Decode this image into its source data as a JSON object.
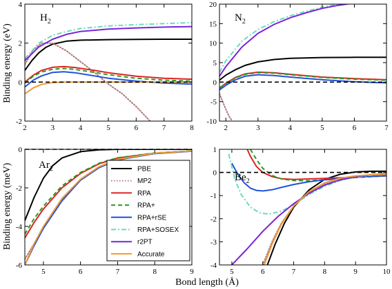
{
  "figure": {
    "ylabel_top": "Binding energy (eV)",
    "ylabel_bottom": "Binding energy (meV)",
    "xlabel": "Bond length (Å)"
  },
  "legend": [
    {
      "name": "PBE",
      "color": "#000000",
      "dash": "solid"
    },
    {
      "name": "MP2",
      "color": "#b07a7a",
      "dash": "dotted"
    },
    {
      "name": "RPA",
      "color": "#dd2222",
      "dash": "solid"
    },
    {
      "name": "RPA+",
      "color": "#2a9a1a",
      "dash": "dashed"
    },
    {
      "name": "RPA+rSE",
      "color": "#2050dd",
      "dash": "solid"
    },
    {
      "name": "RPA+SOSEX",
      "color": "#66ddbb",
      "dash": "dashdot"
    },
    {
      "name": "r2PT",
      "color": "#7a22dd",
      "dash": "solid"
    },
    {
      "name": "Accurate",
      "color": "#ee9933",
      "dash": "solid"
    }
  ],
  "chart_data": [
    {
      "type": "line",
      "panel_label": "H",
      "panel_sub": "2",
      "xlim": [
        2,
        8
      ],
      "ylim": [
        -2,
        4
      ],
      "xticks": [
        2,
        3,
        4,
        5,
        6,
        7,
        8
      ],
      "yticks": [
        -2,
        0,
        2,
        4
      ],
      "reference_line": 0,
      "series": [
        {
          "name": "PBE",
          "x": [
            2.0,
            2.25,
            2.5,
            2.75,
            3.0,
            3.5,
            4.0,
            5.0,
            6.0,
            7.0,
            8.0
          ],
          "y": [
            0.6,
            1.1,
            1.5,
            1.78,
            1.95,
            2.1,
            2.15,
            2.18,
            2.19,
            2.2,
            2.2
          ]
        },
        {
          "name": "MP2",
          "x": [
            2.0,
            2.3,
            2.6,
            3.0,
            3.5,
            4.0,
            4.5,
            5.0,
            5.5,
            6.0,
            6.5
          ],
          "y": [
            0.9,
            1.65,
            2.0,
            2.0,
            1.6,
            1.05,
            0.5,
            -0.1,
            -0.6,
            -1.25,
            -2.0
          ]
        },
        {
          "name": "RPA",
          "x": [
            2.0,
            2.3,
            2.6,
            3.0,
            3.4,
            3.8,
            4.5,
            5.0,
            6.0,
            7.0,
            8.0
          ],
          "y": [
            0.0,
            0.35,
            0.6,
            0.76,
            0.8,
            0.75,
            0.6,
            0.48,
            0.3,
            0.2,
            0.15
          ]
        },
        {
          "name": "RPA+",
          "x": [
            2.0,
            2.3,
            2.6,
            3.0,
            3.4,
            3.8,
            4.5,
            5.0,
            6.0,
            7.0,
            8.0
          ],
          "y": [
            -0.05,
            0.3,
            0.52,
            0.66,
            0.7,
            0.65,
            0.5,
            0.38,
            0.2,
            0.1,
            0.05
          ]
        },
        {
          "name": "RPA+rSE",
          "x": [
            2.0,
            2.3,
            2.6,
            3.0,
            3.4,
            3.8,
            4.5,
            5.0,
            6.0,
            7.0,
            8.0
          ],
          "y": [
            -0.25,
            0.1,
            0.32,
            0.5,
            0.53,
            0.48,
            0.32,
            0.2,
            0.05,
            -0.05,
            -0.1
          ]
        },
        {
          "name": "RPA+SOSEX",
          "x": [
            2.0,
            2.5,
            3.0,
            3.5,
            4.0,
            5.0,
            6.0,
            7.0,
            8.0
          ],
          "y": [
            1.2,
            2.0,
            2.4,
            2.6,
            2.75,
            2.88,
            2.95,
            3.0,
            3.05
          ]
        },
        {
          "name": "r2PT",
          "x": [
            2.0,
            2.5,
            3.0,
            3.5,
            4.0,
            5.0,
            6.0,
            7.0,
            8.0
          ],
          "y": [
            1.1,
            1.8,
            2.2,
            2.45,
            2.6,
            2.72,
            2.78,
            2.82,
            2.85
          ]
        },
        {
          "name": "Accurate",
          "x": [
            2.0,
            2.3,
            2.6,
            3.0,
            3.5,
            4.0,
            5.0,
            6.0,
            7.0,
            8.0
          ],
          "y": [
            -0.6,
            -0.3,
            -0.12,
            -0.02,
            0.0,
            0.0,
            0.0,
            0.0,
            0.0,
            0.0
          ]
        }
      ]
    },
    {
      "type": "line",
      "panel_label": "N",
      "panel_sub": "2",
      "xlim": [
        1.8,
        7
      ],
      "ylim": [
        -10,
        20
      ],
      "xticks": [
        2,
        3,
        4,
        5,
        6,
        7
      ],
      "yticks": [
        -10,
        -5,
        0,
        5,
        10,
        15,
        20
      ],
      "reference_line": 0,
      "series": [
        {
          "name": "PBE",
          "x": [
            1.8,
            2.0,
            2.3,
            2.6,
            3.0,
            3.5,
            4.0,
            5.0,
            6.0,
            7.0
          ],
          "y": [
            0.5,
            1.8,
            3.2,
            4.3,
            5.2,
            5.8,
            6.1,
            6.3,
            6.35,
            6.35
          ]
        },
        {
          "name": "MP2",
          "x": [
            1.8,
            1.9,
            2.0,
            2.1,
            2.2
          ],
          "y": [
            -3.0,
            -5.0,
            -7.0,
            -8.8,
            -10.0
          ]
        },
        {
          "name": "RPA",
          "x": [
            1.8,
            2.0,
            2.3,
            2.6,
            3.0,
            3.5,
            4.0,
            5.0,
            6.0,
            7.0
          ],
          "y": [
            -1.5,
            -0.3,
            1.2,
            2.1,
            2.55,
            2.4,
            2.0,
            1.3,
            0.9,
            0.6
          ]
        },
        {
          "name": "RPA+",
          "x": [
            1.8,
            2.0,
            2.3,
            2.6,
            3.0,
            3.5,
            4.0,
            5.0,
            6.0,
            7.0
          ],
          "y": [
            -1.6,
            -0.4,
            1.1,
            2.0,
            2.45,
            2.3,
            1.9,
            1.2,
            0.75,
            0.5
          ]
        },
        {
          "name": "RPA+rSE",
          "x": [
            1.8,
            2.0,
            2.3,
            2.6,
            3.0,
            3.5,
            4.0,
            5.0,
            6.0,
            7.0
          ],
          "y": [
            -2.0,
            -0.8,
            0.6,
            1.5,
            1.9,
            1.7,
            1.3,
            0.6,
            0.1,
            -0.2
          ]
        },
        {
          "name": "RPA+SOSEX",
          "x": [
            1.8,
            2.0,
            2.5,
            3.0,
            3.5,
            4.0,
            4.5,
            5.0,
            5.5,
            6.0
          ],
          "y": [
            2.5,
            5.5,
            10.5,
            13.5,
            15.5,
            17.0,
            18.2,
            19.2,
            20.0,
            20.5
          ]
        },
        {
          "name": "r2PT",
          "x": [
            1.8,
            2.0,
            2.5,
            3.0,
            3.5,
            4.0,
            4.5,
            5.0,
            5.5,
            6.0
          ],
          "y": [
            1.5,
            4.0,
            9.0,
            12.5,
            14.8,
            16.5,
            17.8,
            18.9,
            19.7,
            20.3
          ]
        }
      ]
    },
    {
      "type": "line",
      "panel_label": "Ar",
      "panel_sub": "2",
      "xlim": [
        4.5,
        9
      ],
      "ylim": [
        -6,
        0
      ],
      "xticks": [
        5,
        6,
        7,
        8,
        9
      ],
      "yticks": [
        -6,
        -4,
        -2,
        0
      ],
      "reference_line": 0,
      "series": [
        {
          "name": "PBE",
          "x": [
            4.5,
            4.75,
            5.0,
            5.25,
            5.5,
            6.0,
            6.5,
            7.0,
            8.0,
            9.0
          ],
          "y": [
            -3.7,
            -2.5,
            -1.5,
            -0.85,
            -0.45,
            -0.12,
            -0.03,
            0.0,
            0.0,
            0.0
          ]
        },
        {
          "name": "MP2",
          "x": [
            4.5,
            4.75,
            5.0,
            5.5,
            6.0,
            6.5,
            7.0,
            8.0,
            9.0
          ],
          "y": [
            -5.7,
            -4.9,
            -4.1,
            -2.7,
            -1.6,
            -0.95,
            -0.55,
            -0.22,
            -0.1
          ]
        },
        {
          "name": "RPA",
          "x": [
            4.5,
            4.75,
            5.0,
            5.5,
            6.0,
            6.5,
            7.0,
            8.0,
            9.0
          ],
          "y": [
            -4.6,
            -3.8,
            -3.1,
            -2.0,
            -1.25,
            -0.75,
            -0.45,
            -0.2,
            -0.09
          ]
        },
        {
          "name": "RPA+",
          "x": [
            4.5,
            4.75,
            5.0,
            5.5,
            6.0,
            6.5,
            7.0,
            8.0,
            9.0
          ],
          "y": [
            -4.4,
            -3.6,
            -2.95,
            -1.9,
            -1.2,
            -0.72,
            -0.44,
            -0.19,
            -0.08
          ]
        },
        {
          "name": "RPA+rSE",
          "x": [
            4.5,
            4.75,
            5.0,
            5.5,
            6.0,
            6.5,
            7.0,
            8.0,
            9.0
          ],
          "y": [
            -6.0,
            -5.0,
            -4.1,
            -2.65,
            -1.6,
            -0.95,
            -0.55,
            -0.22,
            -0.1
          ]
        },
        {
          "name": "Accurate",
          "x": [
            4.5,
            4.75,
            5.0,
            5.5,
            6.0,
            6.5,
            7.0,
            8.0,
            9.0
          ],
          "y": [
            -6.0,
            -4.9,
            -4.0,
            -2.55,
            -1.55,
            -0.9,
            -0.52,
            -0.2,
            -0.09
          ]
        }
      ]
    },
    {
      "type": "line",
      "panel_label": "Be",
      "panel_sub": "2",
      "xlim": [
        4.6,
        10
      ],
      "ylim": [
        -4,
        1
      ],
      "xticks": [
        5,
        6,
        7,
        8,
        9,
        10
      ],
      "yticks": [
        -4,
        -3,
        -2,
        -1,
        0,
        1
      ],
      "reference_line": 0,
      "series": [
        {
          "name": "PBE",
          "x": [
            6.15,
            6.4,
            6.7,
            7.0,
            7.5,
            8.0,
            8.5,
            9.0,
            9.5,
            10.0
          ],
          "y": [
            -4.0,
            -3.1,
            -2.2,
            -1.5,
            -0.75,
            -0.3,
            -0.08,
            0.02,
            0.05,
            0.05
          ]
        },
        {
          "name": "MP2",
          "x": [
            6.0,
            6.3,
            6.6,
            7.0,
            7.5,
            8.0,
            8.5,
            9.0,
            9.5,
            10.0
          ],
          "y": [
            -4.0,
            -3.0,
            -2.2,
            -1.45,
            -0.85,
            -0.5,
            -0.32,
            -0.22,
            -0.16,
            -0.12
          ]
        },
        {
          "name": "RPA",
          "x": [
            5.5,
            5.6,
            5.8,
            6.0,
            6.3,
            6.6,
            7.0,
            8.0,
            9.0,
            10.0
          ],
          "y": [
            1.0,
            0.7,
            0.25,
            0.0,
            -0.18,
            -0.27,
            -0.3,
            -0.26,
            -0.2,
            -0.15
          ]
        },
        {
          "name": "RPA+",
          "x": [
            5.6,
            5.8,
            6.0,
            6.3,
            6.6,
            7.0,
            7.5,
            8.0,
            9.0,
            10.0
          ],
          "y": [
            1.0,
            0.55,
            0.18,
            -0.13,
            -0.28,
            -0.35,
            -0.36,
            -0.32,
            -0.22,
            -0.15
          ]
        },
        {
          "name": "RPA+rSE",
          "x": [
            5.0,
            5.2,
            5.4,
            5.6,
            5.8,
            6.0,
            6.3,
            6.6,
            7.0,
            7.5,
            8.0,
            9.0,
            10.0
          ],
          "y": [
            0.4,
            -0.1,
            -0.45,
            -0.68,
            -0.78,
            -0.8,
            -0.75,
            -0.65,
            -0.52,
            -0.4,
            -0.32,
            -0.2,
            -0.14
          ]
        },
        {
          "name": "RPA+SOSEX",
          "x": [
            4.9,
            5.1,
            5.3,
            5.6,
            5.9,
            6.2,
            6.6,
            7.0,
            7.5,
            8.0,
            8.5,
            9.0,
            9.5,
            10.0
          ],
          "y": [
            0.8,
            -0.3,
            -0.95,
            -1.5,
            -1.75,
            -1.8,
            -1.68,
            -1.4,
            -0.95,
            -0.6,
            -0.35,
            -0.2,
            -0.12,
            -0.08
          ]
        },
        {
          "name": "r2PT",
          "x": [
            5.0,
            5.5,
            6.0,
            6.5,
            7.0,
            7.5,
            8.0,
            8.5,
            9.0,
            9.5,
            10.0
          ],
          "y": [
            -4.0,
            -3.3,
            -2.55,
            -1.9,
            -1.35,
            -0.9,
            -0.55,
            -0.32,
            -0.18,
            -0.1,
            -0.06
          ]
        },
        {
          "name": "Accurate",
          "x": [
            6.05,
            6.3,
            6.6,
            7.0,
            7.5,
            8.0,
            8.5,
            9.0,
            9.5,
            10.0
          ],
          "y": [
            -4.0,
            -3.1,
            -2.25,
            -1.45,
            -0.82,
            -0.45,
            -0.25,
            -0.15,
            -0.1,
            -0.08
          ]
        }
      ]
    }
  ]
}
